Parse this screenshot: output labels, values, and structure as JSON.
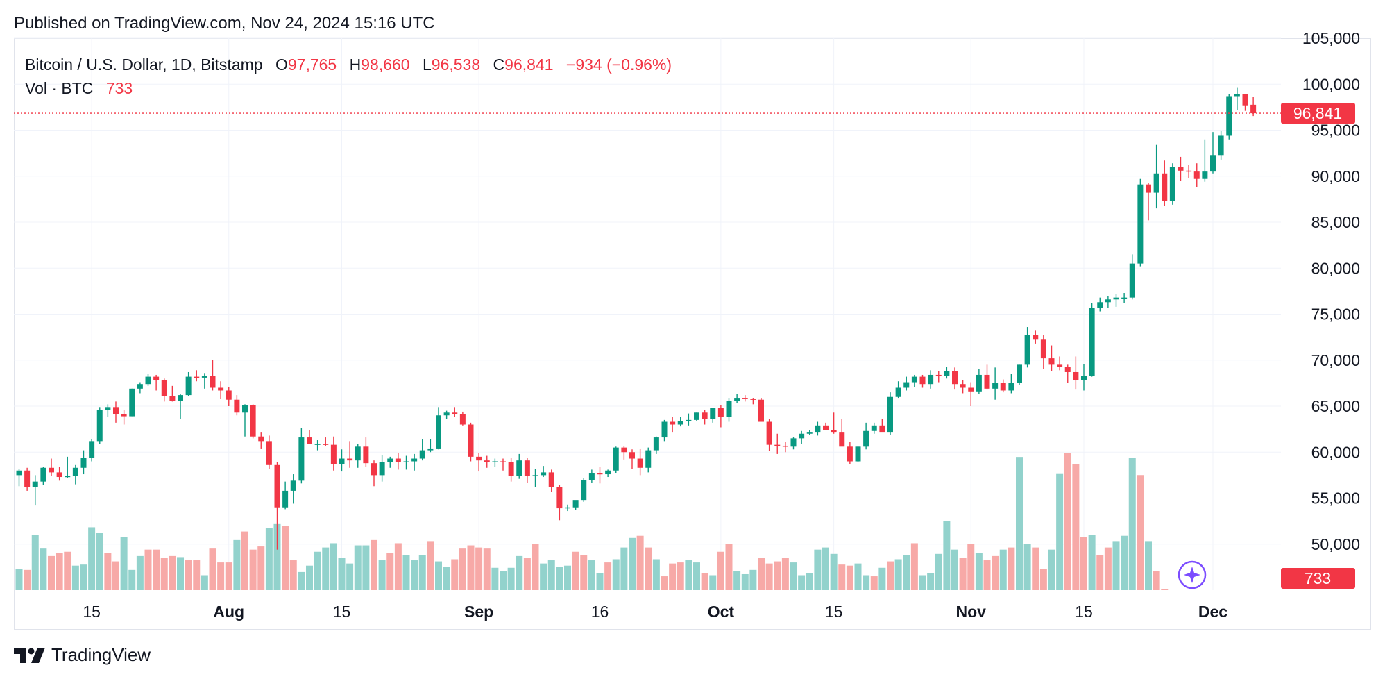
{
  "published": "Published on TradingView.com, Nov 24, 2024 15:16 UTC",
  "legend": {
    "symbol": "Bitcoin / U.S. Dollar, 1D, Bitstamp",
    "o_label": "O",
    "o_value": "97,765",
    "h_label": "H",
    "h_value": "98,660",
    "l_label": "L",
    "l_value": "96,538",
    "c_label": "C",
    "c_value": "96,841",
    "change": "−934 (−0.96%)",
    "vol_label": "Vol · BTC",
    "vol_value": "733"
  },
  "brand": "TradingView",
  "colors": {
    "up": "#089981",
    "down": "#f23645",
    "up_vol": "#92d2cc",
    "down_vol": "#f7a9a7",
    "grid": "#f0f3fa",
    "text": "#131722"
  },
  "chart_data": {
    "type": "candlestick",
    "title": "Bitcoin / U.S. Dollar, 1D, Bitstamp",
    "ylim": [
      45000,
      105000
    ],
    "y_ticks": [
      105000,
      100000,
      95000,
      90000,
      85000,
      80000,
      75000,
      70000,
      65000,
      60000,
      55000,
      50000
    ],
    "y_tick_labels": [
      "105,000",
      "100,000",
      "95,000",
      "90,000",
      "85,000",
      "80,000",
      "75,000",
      "70,000",
      "65,000",
      "60,000",
      "55,000",
      "50,000"
    ],
    "x_ticks": [
      {
        "label": "15",
        "index": 9
      },
      {
        "label": "Aug",
        "index": 26
      },
      {
        "label": "15",
        "index": 40
      },
      {
        "label": "Sep",
        "index": 57
      },
      {
        "label": "16",
        "index": 72
      },
      {
        "label": "Oct",
        "index": 87
      },
      {
        "label": "15",
        "index": 101
      },
      {
        "label": "Nov",
        "index": 118
      },
      {
        "label": "15",
        "index": 132
      },
      {
        "label": "Dec",
        "index": 148
      }
    ],
    "last_price": 96841,
    "last_price_label": "96,841",
    "last_volume_label": "733",
    "volume_max": 60000,
    "candles": [
      [
        57500,
        58200,
        56300,
        58000
      ],
      [
        58000,
        58300,
        55800,
        56200
      ],
      [
        56200,
        57500,
        54200,
        56800
      ],
      [
        56800,
        58400,
        56400,
        58300
      ],
      [
        58300,
        59300,
        57400,
        57800
      ],
      [
        57800,
        58400,
        56900,
        57300
      ],
      [
        57300,
        59500,
        57200,
        57400
      ],
      [
        57400,
        58600,
        56500,
        58300
      ],
      [
        58300,
        60200,
        57600,
        59400
      ],
      [
        59400,
        61400,
        59000,
        61200
      ],
      [
        61200,
        64900,
        60900,
        64600
      ],
      [
        64600,
        65200,
        63800,
        64900
      ],
      [
        64900,
        65500,
        63200,
        64100
      ],
      [
        64100,
        64600,
        63000,
        63900
      ],
      [
        63900,
        66900,
        63900,
        66900
      ],
      [
        66900,
        67600,
        66400,
        67400
      ],
      [
        67400,
        68500,
        67200,
        68200
      ],
      [
        68200,
        68400,
        66700,
        67800
      ],
      [
        67800,
        68000,
        65500,
        66100
      ],
      [
        66100,
        67200,
        65500,
        65600
      ],
      [
        65600,
        66300,
        63600,
        66200
      ],
      [
        66200,
        68700,
        66100,
        68200
      ],
      [
        68200,
        68900,
        67700,
        68100
      ],
      [
        68100,
        68600,
        66900,
        68300
      ],
      [
        68300,
        70000,
        66700,
        67000
      ],
      [
        67000,
        67700,
        65800,
        66700
      ],
      [
        66700,
        67100,
        65000,
        65700
      ],
      [
        65700,
        66200,
        64000,
        64300
      ],
      [
        64300,
        65200,
        61700,
        65100
      ],
      [
        65100,
        65200,
        61500,
        61700
      ],
      [
        61700,
        62200,
        60400,
        61200
      ],
      [
        61200,
        61800,
        58200,
        58600
      ],
      [
        58600,
        58900,
        49400,
        54000
      ],
      [
        54000,
        56800,
        53800,
        55800
      ],
      [
        55800,
        57600,
        54400,
        56900
      ],
      [
        56900,
        62600,
        56600,
        61600
      ],
      [
        61600,
        62400,
        60900,
        60900
      ],
      [
        60900,
        61300,
        60200,
        60900
      ],
      [
        60900,
        61600,
        60700,
        60800
      ],
      [
        60800,
        61700,
        58000,
        58700
      ],
      [
        58700,
        60300,
        57900,
        59300
      ],
      [
        59300,
        61200,
        58300,
        59100
      ],
      [
        59100,
        60900,
        58300,
        60600
      ],
      [
        60600,
        61600,
        58400,
        58800
      ],
      [
        58800,
        59100,
        56300,
        57500
      ],
      [
        57500,
        59700,
        56800,
        58900
      ],
      [
        58900,
        59500,
        58300,
        59300
      ],
      [
        59300,
        59900,
        58100,
        58900
      ],
      [
        58900,
        59600,
        58100,
        59000
      ],
      [
        59000,
        59800,
        58000,
        59300
      ],
      [
        59300,
        61400,
        59100,
        60200
      ],
      [
        60200,
        61400,
        60000,
        60400
      ],
      [
        60400,
        64900,
        60300,
        64000
      ],
      [
        64000,
        64500,
        63600,
        64300
      ],
      [
        64300,
        64900,
        63800,
        64100
      ],
      [
        64100,
        64400,
        62900,
        63000
      ],
      [
        63000,
        63200,
        59000,
        59500
      ],
      [
        59500,
        59900,
        57900,
        59100
      ],
      [
        59100,
        59600,
        58300,
        58900
      ],
      [
        58900,
        59300,
        58400,
        59000
      ],
      [
        59000,
        59300,
        58000,
        58900
      ],
      [
        58900,
        59400,
        56800,
        57400
      ],
      [
        57400,
        59800,
        57100,
        59100
      ],
      [
        59100,
        59400,
        56700,
        57400
      ],
      [
        57400,
        58200,
        56200,
        57500
      ],
      [
        57500,
        58500,
        57300,
        57800
      ],
      [
        57800,
        58100,
        55700,
        56200
      ],
      [
        56200,
        56400,
        52600,
        53900
      ],
      [
        53900,
        54300,
        53600,
        54000
      ],
      [
        54000,
        54700,
        53700,
        54800
      ],
      [
        54800,
        57200,
        54600,
        57000
      ],
      [
        57000,
        58100,
        56700,
        57700
      ],
      [
        57700,
        58400,
        56600,
        57600
      ],
      [
        57600,
        58100,
        57300,
        58000
      ],
      [
        58000,
        60600,
        57700,
        60500
      ],
      [
        60500,
        60700,
        59200,
        60000
      ],
      [
        60000,
        60300,
        58200,
        59300
      ],
      [
        59300,
        60400,
        57500,
        58300
      ],
      [
        58300,
        60500,
        57800,
        60200
      ],
      [
        60200,
        61700,
        59800,
        61600
      ],
      [
        61600,
        63500,
        61200,
        63300
      ],
      [
        63300,
        63800,
        62200,
        63000
      ],
      [
        63000,
        63800,
        62800,
        63400
      ],
      [
        63400,
        64200,
        62900,
        63500
      ],
      [
        63500,
        64300,
        63400,
        64300
      ],
      [
        64300,
        64600,
        63000,
        63600
      ],
      [
        63600,
        64800,
        63200,
        64800
      ],
      [
        64800,
        65100,
        62700,
        63800
      ],
      [
        63800,
        65900,
        63300,
        65600
      ],
      [
        65600,
        66300,
        65300,
        65900
      ],
      [
        65900,
        66200,
        65500,
        65800
      ],
      [
        65800,
        65900,
        65200,
        65700
      ],
      [
        65700,
        65900,
        63400,
        63300
      ],
      [
        63300,
        63600,
        60100,
        60800
      ],
      [
        60800,
        62000,
        59800,
        60700
      ],
      [
        60700,
        61100,
        60000,
        60600
      ],
      [
        60600,
        61600,
        60300,
        61500
      ],
      [
        61500,
        62300,
        60900,
        62000
      ],
      [
        62000,
        62400,
        61900,
        62200
      ],
      [
        62200,
        63300,
        61800,
        62900
      ],
      [
        62900,
        63200,
        62500,
        62400
      ],
      [
        62400,
        64300,
        62000,
        62200
      ],
      [
        62200,
        63600,
        60800,
        60600
      ],
      [
        60600,
        61100,
        58700,
        59000
      ],
      [
        59000,
        60600,
        58900,
        60600
      ],
      [
        60600,
        63200,
        60300,
        62300
      ],
      [
        62300,
        63200,
        62000,
        62900
      ],
      [
        62900,
        63600,
        62300,
        62200
      ],
      [
        62200,
        66500,
        61900,
        66000
      ],
      [
        66000,
        67700,
        65900,
        67000
      ],
      [
        67000,
        68200,
        66700,
        67600
      ],
      [
        67600,
        68400,
        67100,
        68200
      ],
      [
        68200,
        68400,
        67000,
        67400
      ],
      [
        67400,
        68900,
        66900,
        68400
      ],
      [
        68400,
        68800,
        67600,
        68300
      ],
      [
        68300,
        69300,
        68000,
        68800
      ],
      [
        68800,
        69200,
        66800,
        67400
      ],
      [
        67400,
        67800,
        66400,
        67000
      ],
      [
        67000,
        67600,
        65000,
        66600
      ],
      [
        66600,
        69000,
        66300,
        68400
      ],
      [
        68400,
        69500,
        66800,
        66900
      ],
      [
        66900,
        69200,
        65700,
        67500
      ],
      [
        67500,
        67900,
        66500,
        66700
      ],
      [
        66700,
        68500,
        66400,
        67500
      ],
      [
        67500,
        69500,
        67300,
        69500
      ],
      [
        69500,
        73600,
        69200,
        72700
      ],
      [
        72700,
        73200,
        71800,
        72300
      ],
      [
        72300,
        72700,
        69000,
        70200
      ],
      [
        70200,
        71600,
        68800,
        69500
      ],
      [
        69500,
        70400,
        68900,
        69300
      ],
      [
        69300,
        69500,
        67500,
        68700
      ],
      [
        68700,
        70400,
        66800,
        67800
      ],
      [
        67800,
        69600,
        66700,
        68300
      ],
      [
        68300,
        76200,
        68200,
        75700
      ],
      [
        75700,
        76800,
        75300,
        76300
      ],
      [
        76300,
        77000,
        75700,
        76600
      ],
      [
        76600,
        77200,
        75800,
        76800
      ],
      [
        76800,
        77300,
        76200,
        76800
      ],
      [
        76800,
        81500,
        76600,
        80500
      ],
      [
        80500,
        89700,
        80200,
        89100
      ],
      [
        89100,
        89300,
        85200,
        88200
      ],
      [
        88200,
        93400,
        86500,
        90300
      ],
      [
        90300,
        91700,
        86800,
        87300
      ],
      [
        87300,
        91400,
        86900,
        91000
      ],
      [
        91000,
        92100,
        89500,
        90600
      ],
      [
        90600,
        91200,
        89800,
        90500
      ],
      [
        90500,
        91400,
        88800,
        89700
      ],
      [
        89700,
        94000,
        89400,
        90500
      ],
      [
        90500,
        94800,
        90300,
        92300
      ],
      [
        92300,
        94900,
        91800,
        94400
      ],
      [
        94400,
        98900,
        94000,
        98700
      ],
      [
        98700,
        99600,
        97200,
        98900
      ],
      [
        98900,
        98900,
        97100,
        97700
      ],
      [
        97765,
        98660,
        96538,
        96841
      ]
    ],
    "volumes": [
      [
        20,
        1
      ],
      [
        19,
        0
      ],
      [
        52,
        1
      ],
      [
        39,
        1
      ],
      [
        32,
        0
      ],
      [
        35,
        0
      ],
      [
        36,
        0
      ],
      [
        23,
        1
      ],
      [
        24,
        1
      ],
      [
        59,
        1
      ],
      [
        54,
        1
      ],
      [
        35,
        0
      ],
      [
        27,
        0
      ],
      [
        50,
        1
      ],
      [
        19,
        1
      ],
      [
        32,
        1
      ],
      [
        38,
        0
      ],
      [
        38,
        0
      ],
      [
        30,
        0
      ],
      [
        32,
        0
      ],
      [
        31,
        1
      ],
      [
        28,
        0
      ],
      [
        28,
        0
      ],
      [
        14,
        1
      ],
      [
        39,
        0
      ],
      [
        26,
        0
      ],
      [
        26,
        0
      ],
      [
        47,
        1
      ],
      [
        55,
        0
      ],
      [
        38,
        0
      ],
      [
        41,
        0
      ],
      [
        58,
        1
      ],
      [
        62,
        1
      ],
      [
        60,
        0
      ],
      [
        28,
        0
      ],
      [
        17,
        1
      ],
      [
        23,
        1
      ],
      [
        36,
        1
      ],
      [
        40,
        1
      ],
      [
        44,
        1
      ],
      [
        30,
        1
      ],
      [
        25,
        1
      ],
      [
        42,
        1
      ],
      [
        42,
        1
      ],
      [
        47,
        0
      ],
      [
        28,
        1
      ],
      [
        35,
        0
      ],
      [
        44,
        0
      ],
      [
        33,
        1
      ],
      [
        28,
        1
      ],
      [
        33,
        1
      ],
      [
        46,
        0
      ],
      [
        27,
        1
      ],
      [
        22,
        1
      ],
      [
        29,
        0
      ],
      [
        39,
        0
      ],
      [
        42,
        0
      ],
      [
        40,
        0
      ],
      [
        39,
        0
      ],
      [
        21,
        1
      ],
      [
        18,
        1
      ],
      [
        21,
        1
      ],
      [
        32,
        1
      ],
      [
        30,
        0
      ],
      [
        43,
        0
      ],
      [
        25,
        1
      ],
      [
        28,
        1
      ],
      [
        22,
        1
      ],
      [
        23,
        1
      ],
      [
        36,
        0
      ],
      [
        33,
        0
      ],
      [
        28,
        1
      ],
      [
        16,
        1
      ],
      [
        26,
        0
      ],
      [
        29,
        1
      ],
      [
        40,
        1
      ],
      [
        49,
        1
      ],
      [
        51,
        0
      ],
      [
        40,
        0
      ],
      [
        29,
        1
      ],
      [
        13,
        0
      ],
      [
        25,
        0
      ],
      [
        26,
        0
      ],
      [
        28,
        1
      ],
      [
        26,
        1
      ],
      [
        16,
        0
      ],
      [
        14,
        1
      ],
      [
        36,
        0
      ],
      [
        43,
        0
      ],
      [
        18,
        1
      ],
      [
        15,
        1
      ],
      [
        19,
        1
      ],
      [
        30,
        0
      ],
      [
        25,
        0
      ],
      [
        27,
        0
      ],
      [
        30,
        0
      ],
      [
        26,
        1
      ],
      [
        14,
        1
      ],
      [
        16,
        1
      ],
      [
        38,
        1
      ],
      [
        40,
        1
      ],
      [
        34,
        1
      ],
      [
        24,
        0
      ],
      [
        23,
        0
      ],
      [
        25,
        1
      ],
      [
        14,
        1
      ],
      [
        13,
        0
      ],
      [
        21,
        1
      ],
      [
        27,
        0
      ],
      [
        29,
        1
      ],
      [
        33,
        1
      ],
      [
        44,
        0
      ],
      [
        14,
        1
      ],
      [
        16,
        1
      ],
      [
        34,
        1
      ],
      [
        65,
        1
      ],
      [
        38,
        1
      ],
      [
        30,
        0
      ],
      [
        43,
        0
      ],
      [
        35,
        1
      ],
      [
        28,
        0
      ],
      [
        32,
        0
      ],
      [
        38,
        1
      ],
      [
        40,
        0
      ],
      [
        125,
        1
      ],
      [
        43,
        1
      ],
      [
        40,
        0
      ],
      [
        20,
        0
      ],
      [
        38,
        1
      ],
      [
        109,
        1
      ],
      [
        129,
        0
      ],
      [
        118,
        0
      ],
      [
        50,
        0
      ],
      [
        52,
        1
      ],
      [
        33,
        0
      ],
      [
        40,
        0
      ],
      [
        46,
        1
      ],
      [
        51,
        1
      ],
      [
        124,
        1
      ],
      [
        108,
        0
      ],
      [
        46,
        1
      ],
      [
        18,
        0
      ],
      [
        1,
        0
      ]
    ]
  }
}
